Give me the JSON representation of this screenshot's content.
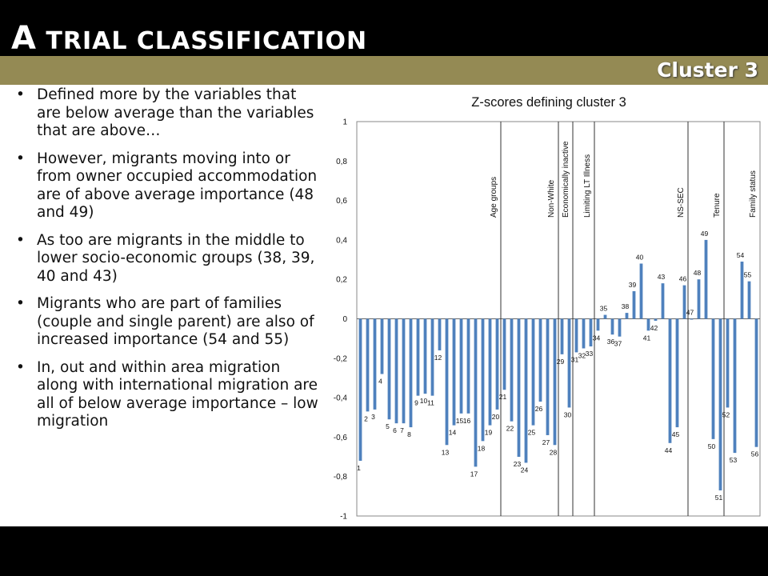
{
  "slide": {
    "title_first_letter": "A",
    "title_rest": " TRIAL CLASSIFICATION",
    "subtitle": "Cluster 3",
    "band_color": "#948A54",
    "bullets": [
      "Defined more by the variables that are below average than the variables that are above…",
      "However, migrants moving into or from owner occupied accommodation are of above average importance (48 and 49)",
      "As too are migrants in the middle to lower socio-economic groups (38, 39, 40 and 43)",
      "Migrants who are part of families (couple and single parent) are also of increased importance (54 and 55)",
      "In, out and within area migration along with international migration are all of below average importance – low migration"
    ]
  },
  "chart_data": {
    "type": "bar",
    "title": "Z-scores defining cluster 3",
    "bar_color": "#4F81BD",
    "ylim": [
      -1,
      1
    ],
    "yticks": [
      "1",
      "0,8",
      "0,6",
      "0,4",
      "0,2",
      "0",
      "-0,2",
      "-0,4",
      "-0,6",
      "-0,8",
      "-1"
    ],
    "categories": [
      "1",
      "2",
      "3",
      "4",
      "5",
      "6",
      "7",
      "8",
      "9",
      "10",
      "11",
      "12",
      "13",
      "14",
      "15",
      "16",
      "17",
      "18",
      "19",
      "20",
      "21",
      "22",
      "23",
      "24",
      "25",
      "26",
      "27",
      "28",
      "29",
      "30",
      "31",
      "32",
      "33",
      "34",
      "35",
      "36",
      "37",
      "38",
      "39",
      "40",
      "41",
      "42",
      "43",
      "44",
      "45",
      "46",
      "47",
      "48",
      "49",
      "50",
      "51",
      "52",
      "53",
      "54",
      "55",
      "56"
    ],
    "values": [
      -0.72,
      -0.47,
      -0.46,
      -0.28,
      -0.51,
      -0.53,
      -0.53,
      -0.55,
      -0.39,
      -0.38,
      -0.39,
      -0.16,
      -0.64,
      -0.54,
      -0.48,
      -0.48,
      -0.75,
      -0.62,
      -0.54,
      -0.46,
      -0.36,
      -0.52,
      -0.7,
      -0.73,
      -0.54,
      -0.42,
      -0.59,
      -0.64,
      -0.18,
      -0.45,
      -0.17,
      -0.15,
      -0.14,
      -0.06,
      0.02,
      -0.08,
      -0.09,
      0.03,
      0.14,
      0.28,
      -0.06,
      -0.01,
      0.18,
      -0.63,
      -0.55,
      0.17,
      0.0,
      0.2,
      0.4,
      -0.61,
      -0.87,
      -0.45,
      -0.68,
      0.29,
      0.19,
      -0.65
    ],
    "groups": [
      {
        "label": "Age groups",
        "after_index": 20
      },
      {
        "label": "Non-White",
        "after_index": 28
      },
      {
        "label": "Economically inactive",
        "after_index": 30
      },
      {
        "label": "Limiting LT Illness",
        "after_index": 33
      },
      {
        "label": "NS-SEC",
        "after_index": 46
      },
      {
        "label": "Tenure",
        "after_index": 51
      },
      {
        "label": "Family status",
        "after_index": null
      }
    ]
  }
}
